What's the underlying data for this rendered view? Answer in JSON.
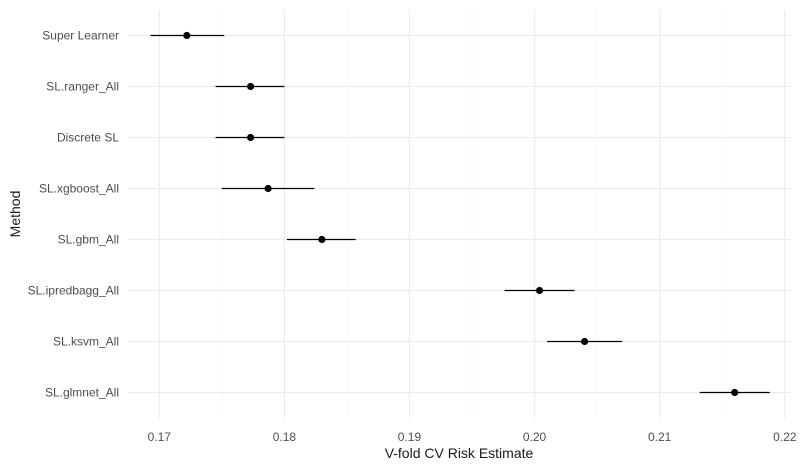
{
  "chart_data": {
    "type": "scatter",
    "subtype": "point-with-error-bars",
    "xlabel": "V-fold CV Risk Estimate",
    "ylabel": "Method",
    "xlim": [
      0.1675,
      0.2205
    ],
    "x_ticks": [
      0.17,
      0.18,
      0.19,
      0.2,
      0.21,
      0.22
    ],
    "x_tick_labels": [
      "0.17",
      "0.18",
      "0.19",
      "0.20",
      "0.21",
      "0.22"
    ],
    "grid": true,
    "points": [
      {
        "method": "Super Learner",
        "estimate": 0.1722,
        "lower": 0.1693,
        "upper": 0.1752
      },
      {
        "method": "SL.ranger_All",
        "estimate": 0.1773,
        "lower": 0.1745,
        "upper": 0.18
      },
      {
        "method": "Discrete SL",
        "estimate": 0.1773,
        "lower": 0.1745,
        "upper": 0.18
      },
      {
        "method": "SL.xgboost_All",
        "estimate": 0.1787,
        "lower": 0.175,
        "upper": 0.1824
      },
      {
        "method": "SL.gbm_All",
        "estimate": 0.183,
        "lower": 0.1802,
        "upper": 0.1857
      },
      {
        "method": "SL.ipredbagg_All",
        "estimate": 0.2004,
        "lower": 0.1976,
        "upper": 0.2032
      },
      {
        "method": "SL.ksvm_All",
        "estimate": 0.204,
        "lower": 0.201,
        "upper": 0.207
      },
      {
        "method": "SL.glmnet_All",
        "estimate": 0.216,
        "lower": 0.2132,
        "upper": 0.2188
      }
    ],
    "colors": {
      "background": "#ffffff",
      "grid": "#ebebeb",
      "point": "#000000",
      "text": "#4d4d4d"
    }
  }
}
